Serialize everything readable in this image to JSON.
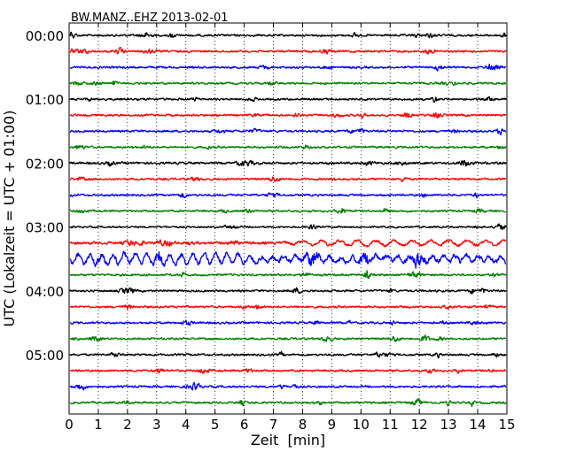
{
  "chart_data": {
    "type": "line",
    "title": "BW.MANZ..EHZ 2013-02-01",
    "xlabel": "Zeit  [min]",
    "ylabel": "UTC (Lokalzeit = UTC + 01:00)",
    "xlim": [
      0,
      15
    ],
    "x_ticks": [
      "0",
      "1",
      "2",
      "3",
      "4",
      "5",
      "6",
      "7",
      "8",
      "9",
      "10",
      "11",
      "12",
      "13",
      "14",
      "15"
    ],
    "y_tick_labels": [
      "00:00",
      "01:00",
      "02:00",
      "03:00",
      "04:00",
      "05:00"
    ],
    "grid_x": true,
    "colors": [
      "#000000",
      "#ff0000",
      "#0000ff",
      "#008000"
    ],
    "series": [
      {
        "start": "00:00",
        "amp": 3,
        "note": "onset spike at 0 min"
      },
      {
        "start": "00:15",
        "amp": 3
      },
      {
        "start": "00:30",
        "amp": 3
      },
      {
        "start": "00:45",
        "amp": 3
      },
      {
        "start": "01:00",
        "amp": 3
      },
      {
        "start": "01:15",
        "amp": 3
      },
      {
        "start": "01:30",
        "amp": 3
      },
      {
        "start": "01:45",
        "amp": 3
      },
      {
        "start": "02:00",
        "amp": 3.3
      },
      {
        "start": "02:15",
        "amp": 3
      },
      {
        "start": "02:30",
        "amp": 3
      },
      {
        "start": "02:45",
        "amp": 3
      },
      {
        "start": "03:00",
        "amp": 2.5
      },
      {
        "start": "03:15",
        "amp": 4,
        "note": "long-period oscillation from ~7 min"
      },
      {
        "start": "03:30",
        "amp": 7,
        "note": "long-period oscillation"
      },
      {
        "start": "03:45",
        "amp": 3
      },
      {
        "start": "04:00",
        "amp": 3
      },
      {
        "start": "04:15",
        "amp": 3
      },
      {
        "start": "04:30",
        "amp": 3
      },
      {
        "start": "04:45",
        "amp": 3
      },
      {
        "start": "05:00",
        "amp": 3
      },
      {
        "start": "05:15",
        "amp": 3
      },
      {
        "start": "05:30",
        "amp": 3
      },
      {
        "start": "05:45",
        "amp": 3
      }
    ]
  }
}
